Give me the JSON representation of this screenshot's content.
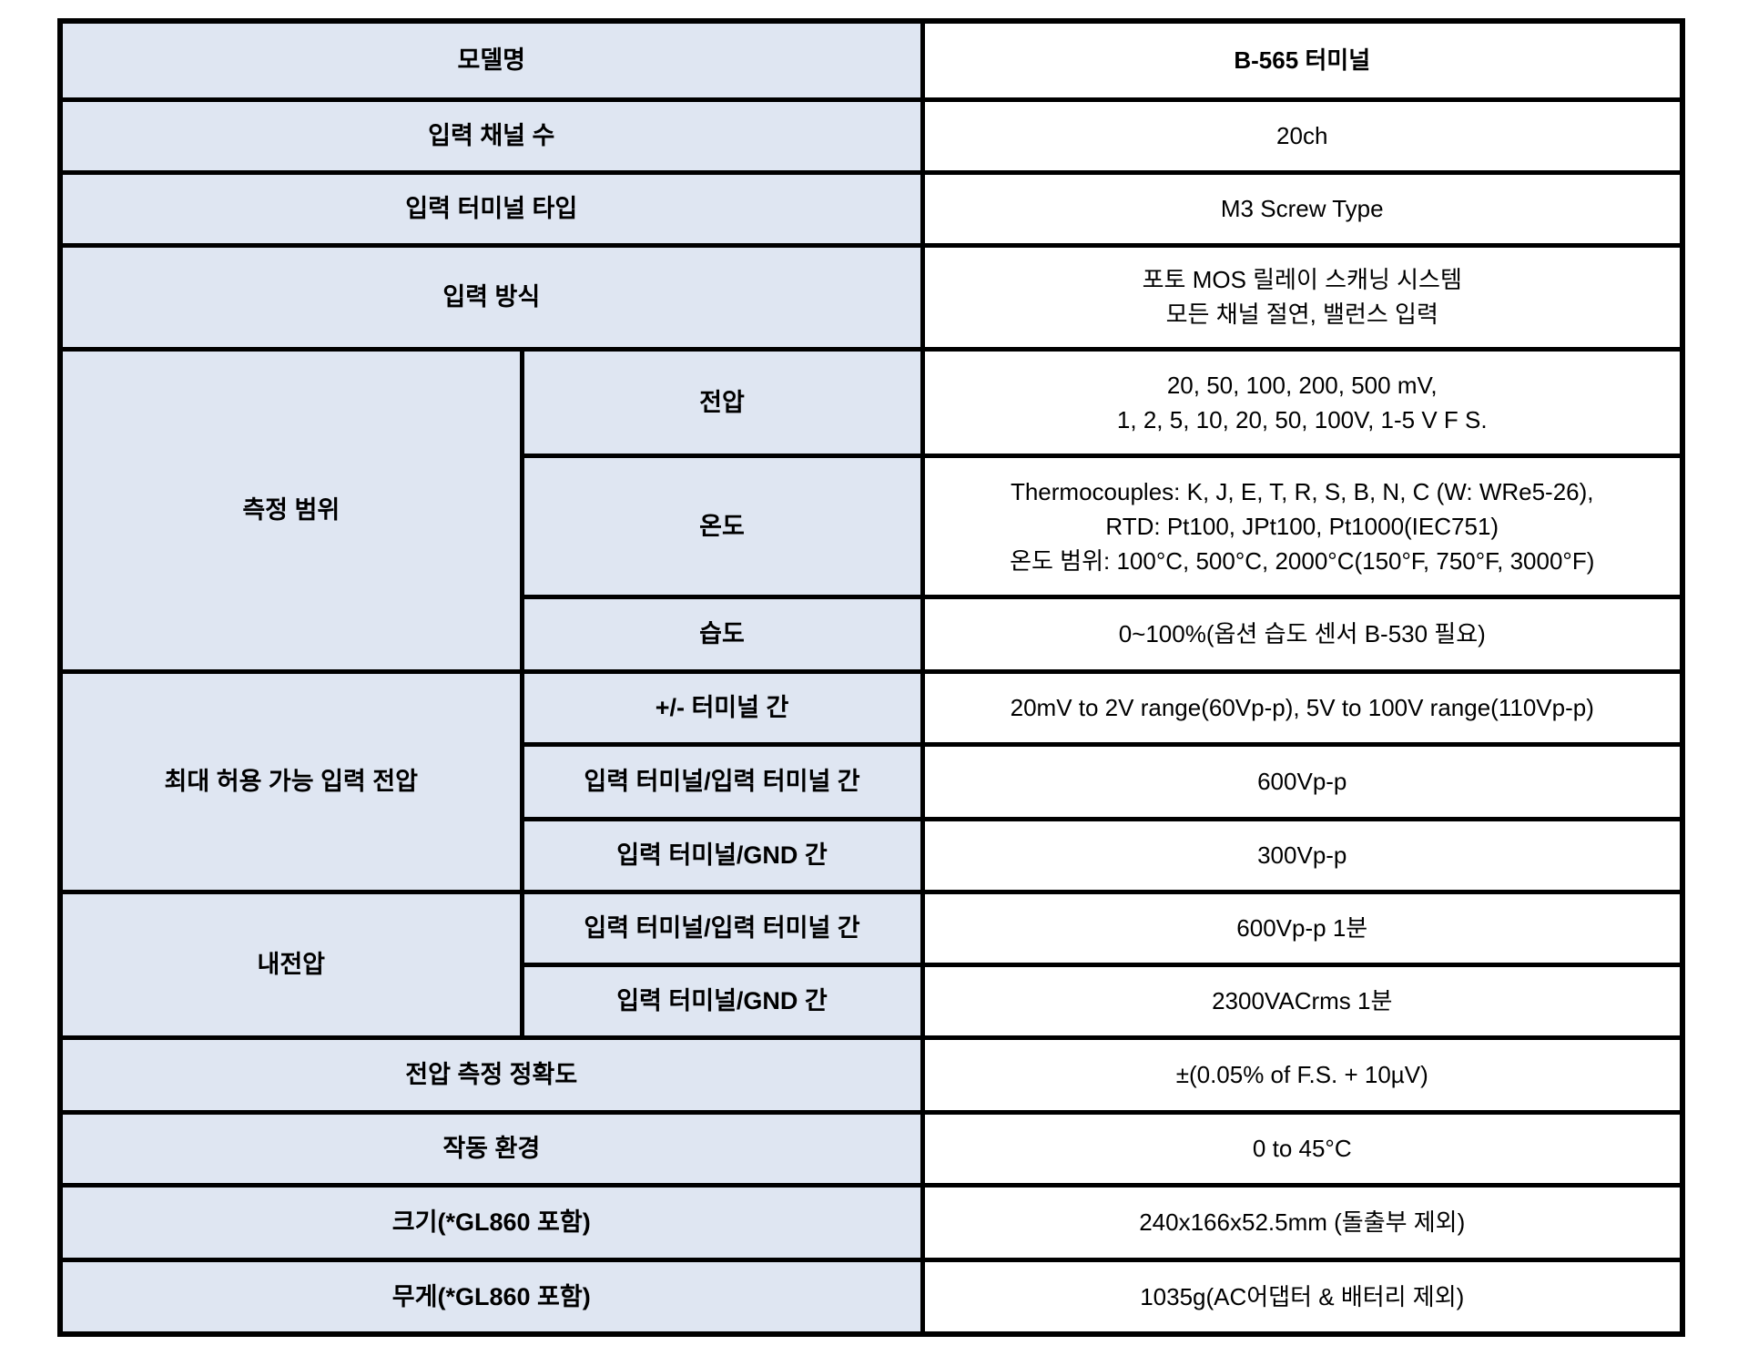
{
  "colors": {
    "label_bg": "#dfe6f2",
    "value_bg": "#ffffff",
    "border": "#000000",
    "text": "#000000"
  },
  "spec": {
    "model": {
      "label": "모델명",
      "value": "B-565 터미널"
    },
    "channels": {
      "label": "입력 채널 수",
      "value": "20ch"
    },
    "terminal_type": {
      "label": "입력 터미널 타입",
      "value": "M3 Screw Type"
    },
    "input_method": {
      "label": "입력 방식",
      "value": "포토 MOS 릴레이 스캐닝 시스템\n모든 채널 절연, 밸런스 입력"
    },
    "measurement_range": {
      "label": "측정 범위",
      "voltage": {
        "label": "전압",
        "value": "20, 50, 100, 200, 500 mV,\n1, 2, 5, 10, 20, 50, 100V, 1-5 V F S."
      },
      "temperature": {
        "label": "온도",
        "value": "Thermocouples: K, J, E, T, R, S, B, N, C (W: WRe5-26),\nRTD: Pt100, JPt100, Pt1000(IEC751)\n온도 범위: 100°C, 500°C, 2000°C(150°F, 750°F, 3000°F)"
      },
      "humidity": {
        "label": "습도",
        "value": "0~100%(옵션 습도 센서 B-530 필요)"
      }
    },
    "max_allowable_input_voltage": {
      "label": "최대 허용 가능 입력 전압",
      "plus_minus_terminal": {
        "label": "+/- 터미널 간",
        "value": "20mV to 2V range(60Vp-p), 5V to 100V range(110Vp-p)"
      },
      "terminal_terminal": {
        "label": "입력 터미널/입력 터미널 간",
        "value": "600Vp-p"
      },
      "terminal_gnd": {
        "label": "입력 터미널/GND 간",
        "value": "300Vp-p"
      }
    },
    "withstand_voltage": {
      "label": "내전압",
      "terminal_terminal": {
        "label": "입력 터미널/입력 터미널 간",
        "value": "600Vp-p 1분"
      },
      "terminal_gnd": {
        "label": "입력 터미널/GND 간",
        "value": "2300VACrms 1분"
      }
    },
    "voltage_accuracy": {
      "label": "전압 측정 정확도",
      "value": "±(0.05% of F.S. + 10µV)"
    },
    "operating_environment": {
      "label": "작동 환경",
      "value": "0 to 45°C"
    },
    "size": {
      "label": "크기(*GL860 포함)",
      "value": "240x166x52.5mm (돌출부 제외)"
    },
    "weight": {
      "label": "무게(*GL860 포함)",
      "value": "1035g(AC어댑터 & 배터리 제외)"
    }
  }
}
